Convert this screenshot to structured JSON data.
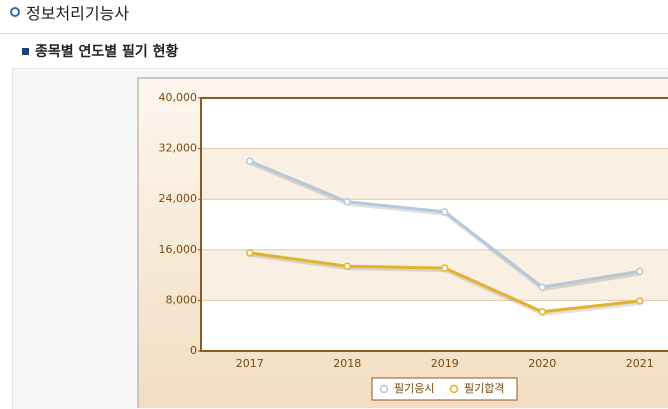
{
  "header": {
    "title": "정보처리기능사",
    "subtitle": "종목별 연도별 필기 현황"
  },
  "chart_data": {
    "type": "line",
    "categories": [
      "2017",
      "2018",
      "2019",
      "2020",
      "2021"
    ],
    "series": [
      {
        "name": "필기응시",
        "color": "#b4c8da",
        "values": [
          30000,
          23600,
          22000,
          10100,
          12600
        ]
      },
      {
        "name": "필기합격",
        "color": "#e2b22e",
        "values": [
          15500,
          13400,
          13100,
          6200,
          7900
        ]
      }
    ],
    "ylim": [
      0,
      40000
    ],
    "yticks": [
      0,
      {
        "value": 8000,
        "label": "8,000"
      },
      {
        "value": 16000,
        "label": "16,000"
      },
      {
        "value": 24000,
        "label": "24,000"
      },
      {
        "value": 32000,
        "label": "32,000"
      },
      {
        "value": 40000,
        "label": "40,000"
      }
    ],
    "grid": true
  }
}
